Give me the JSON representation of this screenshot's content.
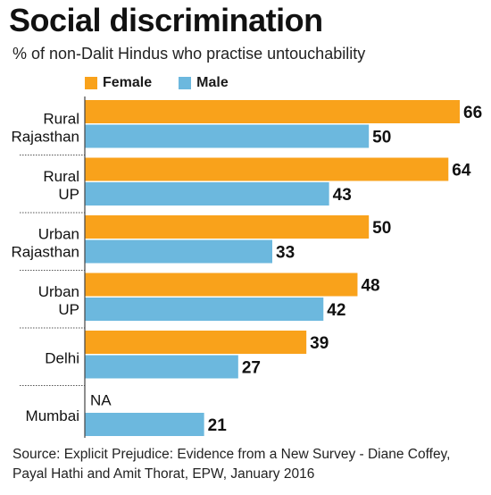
{
  "title": "Social discrimination",
  "subtitle": "% of non-Dalit Hindus who practise untouchability",
  "source": "Source: Explicit Prejudice: Evidence from a New Survey - Diane Coffey, Payal Hathi and Amit Thorat, EPW, January 2016",
  "colors": {
    "female": "#f9a21b",
    "male": "#6cb8de"
  },
  "chart_data": {
    "type": "bar",
    "orientation": "horizontal",
    "categories": [
      [
        "Rural",
        "Rajasthan"
      ],
      [
        "Rural",
        "UP"
      ],
      [
        "Urban",
        "Rajasthan"
      ],
      [
        "Urban",
        "UP"
      ],
      [
        "Delhi"
      ],
      [
        "Mumbai"
      ]
    ],
    "series": [
      {
        "name": "Female",
        "values": [
          66,
          64,
          50,
          48,
          39,
          null
        ],
        "labels": [
          "66",
          "64",
          "50",
          "48",
          "39",
          "NA"
        ]
      },
      {
        "name": "Male",
        "values": [
          50,
          43,
          33,
          42,
          27,
          21
        ],
        "labels": [
          "50",
          "43",
          "33",
          "42",
          "27",
          "21"
        ]
      }
    ],
    "title": "Social discrimination",
    "subtitle": "% of non-Dalit Hindus who practise untouchability",
    "xlim": [
      0,
      66
    ],
    "grid": false,
    "legend": "top"
  }
}
